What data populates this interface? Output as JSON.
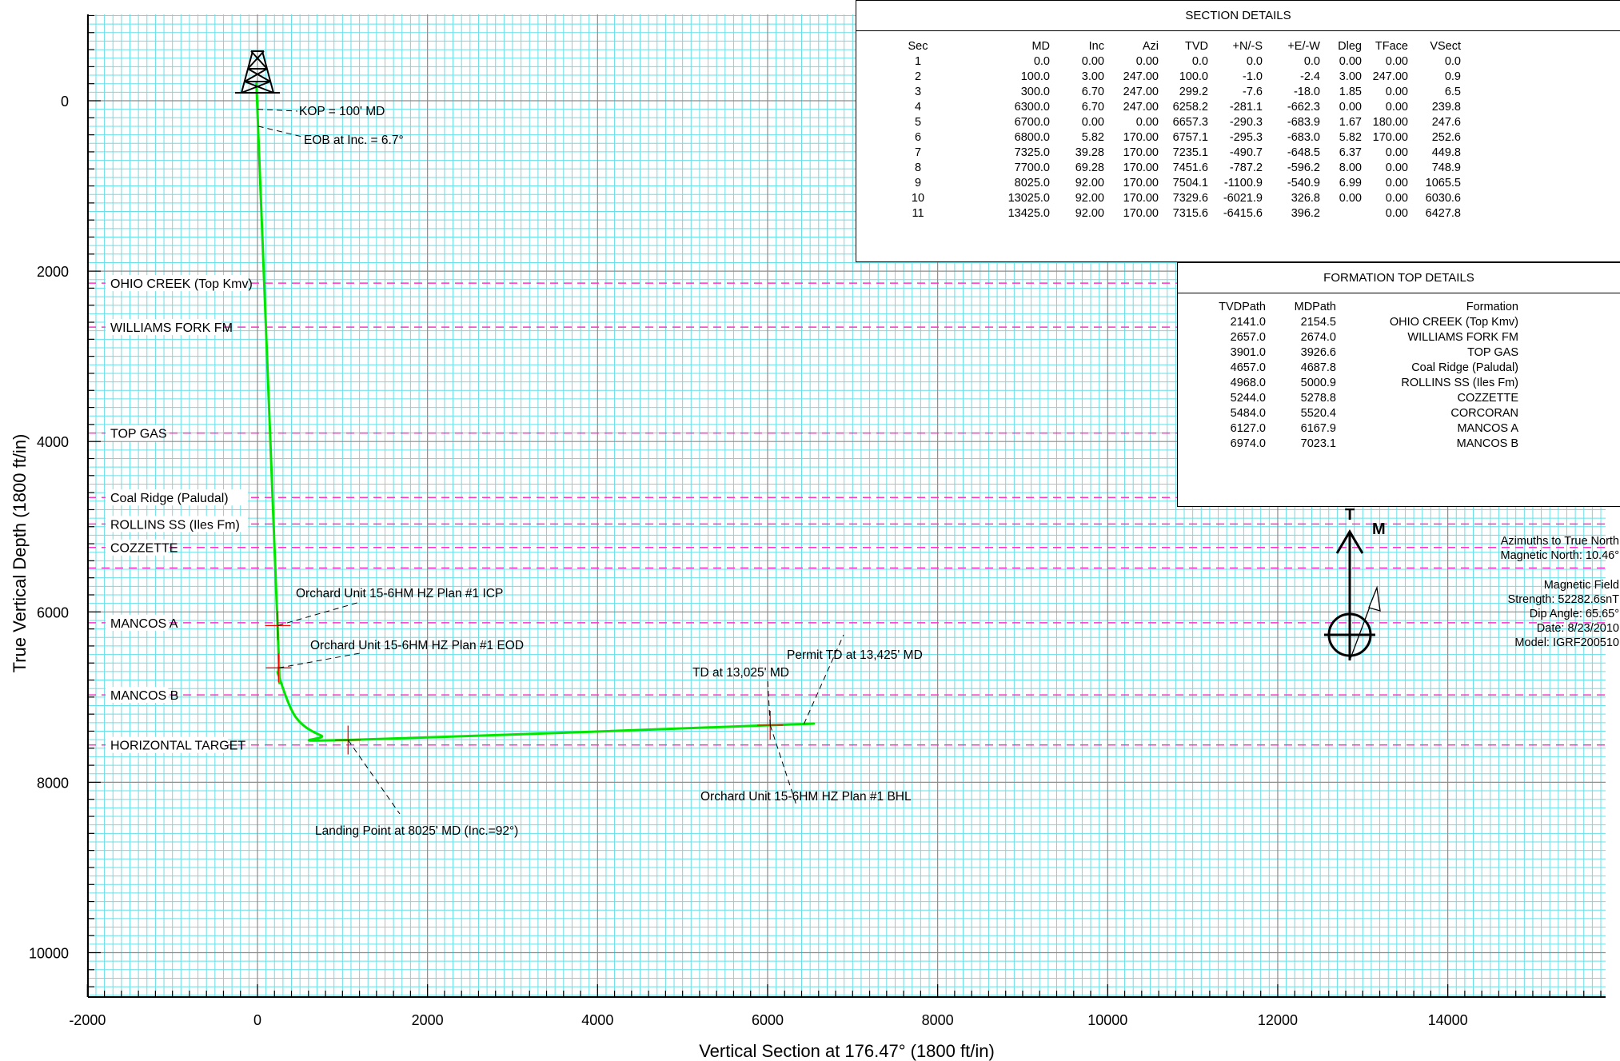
{
  "chart_data": {
    "type": "line",
    "xlabel": "Vertical Section at 176.47° (1800 ft/in)",
    "ylabel": "True Vertical Depth (1800 ft/in)",
    "xlim": [
      -2000,
      15800
    ],
    "ylim": [
      -1000,
      10500
    ],
    "y_inverted": true,
    "x_ticks": [
      "-2000",
      "0",
      "2000",
      "4000",
      "6000",
      "8000",
      "10000",
      "12000",
      "14000"
    ],
    "y_ticks": [
      "0",
      "2000",
      "4000",
      "6000",
      "8000",
      "10000"
    ],
    "grid": true,
    "series": [
      {
        "color": "#00e600",
        "x": [
          0.0,
          0.9,
          6.5,
          239.8,
          247.6,
          252.6,
          449.8,
          748.9,
          1065.5,
          6030.6,
          6427.8
        ],
        "y": [
          0.0,
          100.0,
          299.2,
          6258.2,
          6657.3,
          6757.1,
          7235.1,
          7451.6,
          7504.1,
          7329.6,
          7315.6
        ]
      }
    ],
    "formation_lines": [
      {
        "name": "OHIO CREEK (Top Kmv)",
        "tvd": 2141
      },
      {
        "name": "WILLIAMS FORK FM",
        "tvd": 2657
      },
      {
        "name": "TOP GAS",
        "tvd": 3901
      },
      {
        "name": "Coal Ridge (Paludal)",
        "tvd": 4657
      },
      {
        "name": "ROLLINS SS (Iles Fm)",
        "tvd": 4968
      },
      {
        "name": "COZZETTE",
        "tvd": 5244
      },
      {
        "name": "",
        "tvd": 5484
      },
      {
        "name": "MANCOS A",
        "tvd": 6127
      },
      {
        "name": "MANCOS B",
        "tvd": 6974
      },
      {
        "name": "HORIZONTAL TARGET",
        "tvd": 7562
      }
    ],
    "annotations": [
      {
        "text": "KOP = 100' MD",
        "x": 0.9,
        "y": 100
      },
      {
        "text": "EOB at Inc. = 6.7°",
        "x": 6.5,
        "y": 299.2
      },
      {
        "text": "Orchard Unit 15-6HM HZ Plan #1 ICP",
        "x": 240,
        "y": 6160
      },
      {
        "text": "Orchard Unit 15-6HM HZ Plan #1 EOD",
        "x": 247.6,
        "y": 6657.3
      },
      {
        "text": "Permit TD at 13,425' MD",
        "x": 6427.8,
        "y": 7315.6
      },
      {
        "text": "TD at 13,025' MD",
        "x": 6030.6,
        "y": 7329.6
      },
      {
        "text": "Landing Point at 8025' MD (Inc.=92°)",
        "x": 1065.5,
        "y": 7504.1
      },
      {
        "text": "Orchard Unit 15-6HM HZ Plan #1 BHL",
        "x": 6030.6,
        "y": 7329.6
      }
    ],
    "target_marks": [
      {
        "x": 240,
        "y": 6160
      },
      {
        "x": 247.6,
        "y": 6657.3
      },
      {
        "x": 1065.5,
        "y": 7504.1
      },
      {
        "x": 6030.6,
        "y": 7329.6
      }
    ]
  },
  "section_details": {
    "title": "SECTION DETAILS",
    "columns": [
      "Sec",
      "MD",
      "Inc",
      "Azi",
      "TVD",
      "+N/-S",
      "+E/-W",
      "Dleg",
      "TFace",
      "VSect"
    ],
    "rows": [
      [
        "1",
        "0.0",
        "0.00",
        "0.00",
        "0.0",
        "0.0",
        "0.0",
        "0.00",
        "0.00",
        "0.0"
      ],
      [
        "2",
        "100.0",
        "3.00",
        "247.00",
        "100.0",
        "-1.0",
        "-2.4",
        "3.00",
        "247.00",
        "0.9"
      ],
      [
        "3",
        "300.0",
        "6.70",
        "247.00",
        "299.2",
        "-7.6",
        "-18.0",
        "1.85",
        "0.00",
        "6.5"
      ],
      [
        "4",
        "6300.0",
        "6.70",
        "247.00",
        "6258.2",
        "-281.1",
        "-662.3",
        "0.00",
        "0.00",
        "239.8"
      ],
      [
        "5",
        "6700.0",
        "0.00",
        "0.00",
        "6657.3",
        "-290.3",
        "-683.9",
        "1.67",
        "180.00",
        "247.6"
      ],
      [
        "6",
        "6800.0",
        "5.82",
        "170.00",
        "6757.1",
        "-295.3",
        "-683.0",
        "5.82",
        "170.00",
        "252.6"
      ],
      [
        "7",
        "7325.0",
        "39.28",
        "170.00",
        "7235.1",
        "-490.7",
        "-648.5",
        "6.37",
        "0.00",
        "449.8"
      ],
      [
        "8",
        "7700.0",
        "69.28",
        "170.00",
        "7451.6",
        "-787.2",
        "-596.2",
        "8.00",
        "0.00",
        "748.9"
      ],
      [
        "9",
        "8025.0",
        "92.00",
        "170.00",
        "7504.1",
        "-1100.9",
        "-540.9",
        "6.99",
        "0.00",
        "1065.5"
      ],
      [
        "10",
        "13025.0",
        "92.00",
        "170.00",
        "7329.6",
        "-6021.9",
        "326.8",
        "0.00",
        "0.00",
        "6030.6"
      ],
      [
        "11",
        "13425.0",
        "92.00",
        "170.00",
        "7315.6",
        "-6415.6",
        "396.2",
        "",
        "0.00",
        "6427.8"
      ]
    ]
  },
  "formation_details": {
    "title": "FORMATION TOP DETAILS",
    "columns": [
      "TVDPath",
      "MDPath",
      "Formation"
    ],
    "rows": [
      [
        "2141.0",
        "2154.5",
        "OHIO CREEK (Top Kmv)"
      ],
      [
        "2657.0",
        "2674.0",
        "WILLIAMS FORK FM"
      ],
      [
        "3901.0",
        "3926.6",
        "TOP GAS"
      ],
      [
        "4657.0",
        "4687.8",
        "Coal Ridge (Paludal)"
      ],
      [
        "4968.0",
        "5000.9",
        "ROLLINS SS (Iles Fm)"
      ],
      [
        "5244.0",
        "5278.8",
        "COZZETTE"
      ],
      [
        "5484.0",
        "5520.4",
        "CORCORAN"
      ],
      [
        "6127.0",
        "6167.9",
        "MANCOS A"
      ],
      [
        "6974.0",
        "7023.1",
        "MANCOS B"
      ]
    ]
  },
  "north_arrow": {
    "t_label": "T",
    "m_label": "M",
    "azimuth_text": [
      "Azimuths to True North",
      "Magnetic North: 10.46°"
    ],
    "field_text": [
      "Magnetic Field",
      "Strength: 52282.6snT",
      "Dip Angle: 65.65°",
      "Date: 8/23/2010",
      "Model: IGRF200510"
    ]
  },
  "colors": {
    "well_path": "#00e600",
    "formation_line": "#ff33cc",
    "minor_grid": "#66e0e8",
    "major_grid": "#8c8c8c",
    "target_mark": "#ff0000"
  }
}
